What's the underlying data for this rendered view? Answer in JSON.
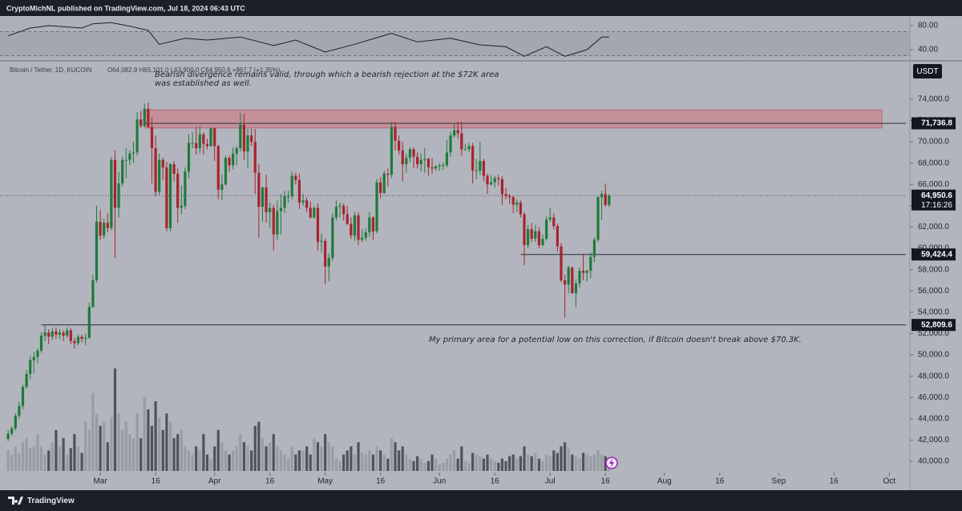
{
  "header": "CryptoMichNL published on TradingView.com, Jul 18, 2024 06:43 UTC",
  "footer": "TradingView",
  "chart_data": {
    "type": "candlestick",
    "legend": {
      "symbol": "Bitcoin / Tether, 1D, KUCOIN",
      "ohlc": "O64,082.9 H65,101.0 L63,900.0 C64,950.6 +867.7 (+1.35%)"
    },
    "currency": "USDT",
    "annotations": [
      {
        "lines": [
          "Bearish divergence remains valid, through which a bearish rejection at the $72K area",
          "was established as well."
        ]
      },
      {
        "lines": [
          "My primary area for a potential low on this correction, if Bitcoin doesn't break above $70.3K."
        ]
      }
    ],
    "colors": {
      "up": "#1f7a3a",
      "down": "#a8232e",
      "volume_up": "#9a9ca4",
      "volume_down": "#50535b"
    },
    "xlim": [
      -2.2,
      243.5
    ],
    "xticks": [
      {
        "value": 25,
        "label": "Mar"
      },
      {
        "value": 40,
        "label": "16"
      },
      {
        "value": 56,
        "label": "Apr"
      },
      {
        "value": 71,
        "label": "16"
      },
      {
        "value": 86,
        "label": "May"
      },
      {
        "value": 101,
        "label": "16"
      },
      {
        "value": 117,
        "label": "Jun"
      },
      {
        "value": 132,
        "label": "16"
      },
      {
        "value": 147,
        "label": "Jul"
      },
      {
        "value": 162,
        "label": "16"
      },
      {
        "value": 178,
        "label": "Aug"
      },
      {
        "value": 193,
        "label": "16"
      },
      {
        "value": 209,
        "label": "Sep"
      },
      {
        "value": 224,
        "label": "16"
      },
      {
        "value": 239,
        "label": "Oct"
      }
    ],
    "ylim": [
      38950,
      77300
    ],
    "yticks": [
      {
        "value": 40000,
        "label": "40,000.0"
      },
      {
        "value": 42000,
        "label": "42,000.0"
      },
      {
        "value": 44000,
        "label": "44,000.0"
      },
      {
        "value": 46000,
        "label": "46,000.0"
      },
      {
        "value": 48000,
        "label": "48,000.0"
      },
      {
        "value": 50000,
        "label": "50,000.0"
      },
      {
        "value": 52000,
        "label": "52,000.0"
      },
      {
        "value": 54000,
        "label": "54,000.0"
      },
      {
        "value": 56000,
        "label": "56,000.0"
      },
      {
        "value": 58000,
        "label": "58,000.0"
      },
      {
        "value": 60000,
        "label": "60,000.0"
      },
      {
        "value": 62000,
        "label": "62,000.0"
      },
      {
        "value": 64000,
        "label": "64,000.0"
      },
      {
        "value": 66000,
        "label": "66,000.0"
      },
      {
        "value": 68000,
        "label": "68,000.0"
      },
      {
        "value": 70000,
        "label": "70,000.0"
      },
      {
        "value": 72000,
        "label": "72,000.0"
      },
      {
        "value": 74000,
        "label": "74,000.0"
      }
    ],
    "zone": {
      "from": 37,
      "to": 237,
      "low": 71300,
      "high": 73000,
      "color": "#c98690"
    },
    "price_lines": [
      {
        "value": 71736.8,
        "label": "71,736.8",
        "from": 37
      },
      {
        "value": 64950.6,
        "label": "64,950.6",
        "countdown": "17:16:26",
        "style": "dotted"
      },
      {
        "value": 59424.4,
        "label": "59,424.4",
        "from": 139
      },
      {
        "value": 52809.6,
        "label": "52,809.6",
        "from": 9
      }
    ],
    "candles": [
      [
        42100,
        42900,
        41900,
        42600
      ],
      [
        42600,
        43300,
        42400,
        43100
      ],
      [
        43100,
        44500,
        42900,
        44300
      ],
      [
        44300,
        45600,
        44000,
        45200
      ],
      [
        45200,
        47200,
        44900,
        47000
      ],
      [
        47000,
        48600,
        46800,
        48200
      ],
      [
        48200,
        49900,
        47700,
        49500
      ],
      [
        49500,
        50300,
        48300,
        49800
      ],
      [
        49800,
        50600,
        49200,
        50400
      ],
      [
        50400,
        52100,
        50200,
        51800
      ],
      [
        51800,
        52800,
        51300,
        52100
      ],
      [
        52100,
        52400,
        51000,
        51700
      ],
      [
        51700,
        52500,
        51400,
        52200
      ],
      [
        52200,
        52600,
        51500,
        51900
      ],
      [
        51900,
        52400,
        51500,
        52100
      ],
      [
        52100,
        52300,
        51300,
        51800
      ],
      [
        51800,
        52600,
        51600,
        52300
      ],
      [
        52300,
        52500,
        51000,
        51300
      ],
      [
        51300,
        51600,
        50600,
        51100
      ],
      [
        51100,
        51900,
        50900,
        51700
      ],
      [
        51700,
        51900,
        51200,
        51500
      ],
      [
        51500,
        52000,
        50900,
        51600
      ],
      [
        51600,
        54900,
        51500,
        54500
      ],
      [
        54500,
        57500,
        54400,
        57000
      ],
      [
        57000,
        64000,
        56800,
        62500
      ],
      [
        62500,
        63600,
        60800,
        61200
      ],
      [
        61200,
        62800,
        60900,
        62400
      ],
      [
        62400,
        63300,
        61500,
        61900
      ],
      [
        61900,
        68600,
        61700,
        68300
      ],
      [
        68300,
        69200,
        59100,
        63800
      ],
      [
        63800,
        67200,
        62900,
        66100
      ],
      [
        66100,
        68600,
        65800,
        68300
      ],
      [
        68300,
        69400,
        66600,
        68300
      ],
      [
        68300,
        69200,
        67800,
        68900
      ],
      [
        68900,
        70000,
        68000,
        69000
      ],
      [
        69000,
        72800,
        68700,
        72100
      ],
      [
        72100,
        72900,
        71300,
        71500
      ],
      [
        71500,
        73600,
        71400,
        73100
      ],
      [
        73100,
        73700,
        71300,
        71400
      ],
      [
        71400,
        72300,
        66100,
        69400
      ],
      [
        69400,
        70600,
        64900,
        65300
      ],
      [
        65300,
        68900,
        65000,
        68300
      ],
      [
        68300,
        68500,
        66400,
        67600
      ],
      [
        67600,
        68100,
        61600,
        61900
      ],
      [
        61900,
        68000,
        61600,
        67900
      ],
      [
        67900,
        68200,
        66300,
        67000
      ],
      [
        67000,
        67500,
        62400,
        63800
      ],
      [
        63800,
        65900,
        63200,
        64000
      ],
      [
        64000,
        67600,
        63700,
        67200
      ],
      [
        67200,
        70700,
        66600,
        69900
      ],
      [
        69900,
        70900,
        69400,
        69900
      ],
      [
        69900,
        71400,
        68800,
        69400
      ],
      [
        69400,
        71500,
        68900,
        70700
      ],
      [
        70700,
        70900,
        68800,
        69800
      ],
      [
        69800,
        70300,
        69300,
        69600
      ],
      [
        69600,
        71300,
        69500,
        71300
      ],
      [
        71300,
        71300,
        68200,
        69600
      ],
      [
        69600,
        69700,
        64600,
        65500
      ],
      [
        65500,
        66900,
        64500,
        66000
      ],
      [
        66000,
        68700,
        65900,
        68500
      ],
      [
        68500,
        68700,
        67200,
        67800
      ],
      [
        67800,
        69500,
        67400,
        68900
      ],
      [
        68900,
        69600,
        67800,
        69400
      ],
      [
        69400,
        72700,
        69100,
        71600
      ],
      [
        71600,
        72600,
        68300,
        69100
      ],
      [
        69100,
        71200,
        67500,
        70600
      ],
      [
        70600,
        71200,
        69600,
        70000
      ],
      [
        70000,
        71200,
        65100,
        67100
      ],
      [
        67100,
        67900,
        61000,
        63900
      ],
      [
        63900,
        65800,
        62500,
        65700
      ],
      [
        65700,
        66900,
        62400,
        63400
      ],
      [
        63400,
        64300,
        61900,
        63800
      ],
      [
        63800,
        64100,
        59800,
        61300
      ],
      [
        61300,
        64500,
        60800,
        63500
      ],
      [
        63500,
        65100,
        61300,
        63800
      ],
      [
        63800,
        65400,
        63300,
        64900
      ],
      [
        64900,
        65400,
        64300,
        64900
      ],
      [
        64900,
        67200,
        64600,
        66800
      ],
      [
        66800,
        67100,
        66000,
        66400
      ],
      [
        66400,
        67000,
        63700,
        64300
      ],
      [
        64300,
        65100,
        64000,
        64500
      ],
      [
        64500,
        64800,
        63400,
        63800
      ],
      [
        63800,
        64400,
        62800,
        62900
      ],
      [
        62900,
        64000,
        62800,
        63800
      ],
      [
        63800,
        64200,
        59800,
        60600
      ],
      [
        60600,
        61400,
        59600,
        60700
      ],
      [
        60700,
        60900,
        56600,
        58300
      ],
      [
        58300,
        59500,
        56900,
        59100
      ],
      [
        59100,
        63300,
        58800,
        62900
      ],
      [
        62900,
        64500,
        62600,
        63900
      ],
      [
        63900,
        64300,
        62900,
        64000
      ],
      [
        64000,
        64200,
        62600,
        63200
      ],
      [
        63200,
        64000,
        62200,
        62300
      ],
      [
        62300,
        62900,
        60900,
        61200
      ],
      [
        61200,
        63400,
        60700,
        63100
      ],
      [
        63100,
        63400,
        60300,
        60800
      ],
      [
        60800,
        61800,
        60600,
        61000
      ],
      [
        61000,
        61900,
        60700,
        61500
      ],
      [
        61500,
        63400,
        61100,
        62900
      ],
      [
        62900,
        63000,
        60800,
        61600
      ],
      [
        61600,
        66500,
        61400,
        66200
      ],
      [
        66200,
        66700,
        64700,
        65200
      ],
      [
        65200,
        67300,
        65100,
        67000
      ],
      [
        67000,
        67500,
        65800,
        66900
      ],
      [
        66900,
        71900,
        66600,
        71400
      ],
      [
        71400,
        71900,
        69200,
        70100
      ],
      [
        70100,
        70600,
        68800,
        69200
      ],
      [
        69200,
        70000,
        66300,
        67900
      ],
      [
        67900,
        68900,
        67100,
        68500
      ],
      [
        68500,
        69500,
        68100,
        69300
      ],
      [
        69300,
        69500,
        67500,
        68600
      ],
      [
        68600,
        69000,
        67500,
        67900
      ],
      [
        67900,
        68900,
        67200,
        68300
      ],
      [
        68300,
        69400,
        67100,
        68400
      ],
      [
        68400,
        68500,
        66800,
        67600
      ],
      [
        67600,
        68500,
        67000,
        67500
      ],
      [
        67500,
        67800,
        67300,
        67700
      ],
      [
        67700,
        68000,
        67300,
        67800
      ],
      [
        67800,
        68100,
        67400,
        67800
      ],
      [
        67800,
        70200,
        67600,
        69000
      ],
      [
        69000,
        71000,
        68600,
        70600
      ],
      [
        70600,
        71800,
        70400,
        71100
      ],
      [
        71100,
        71900,
        70300,
        70800
      ],
      [
        70800,
        71900,
        68700,
        69300
      ],
      [
        69300,
        69800,
        69200,
        69300
      ],
      [
        69300,
        69900,
        69000,
        69600
      ],
      [
        69600,
        69900,
        66100,
        67300
      ],
      [
        67300,
        68400,
        66500,
        67300
      ],
      [
        67300,
        70000,
        66900,
        68200
      ],
      [
        68200,
        68400,
        66300,
        66800
      ],
      [
        66800,
        67000,
        65100,
        66000
      ],
      [
        66000,
        66900,
        65900,
        66200
      ],
      [
        66200,
        66800,
        65700,
        66600
      ],
      [
        66600,
        66900,
        65900,
        66500
      ],
      [
        66500,
        66800,
        64100,
        65100
      ],
      [
        65100,
        65700,
        64600,
        64900
      ],
      [
        64900,
        65100,
        64200,
        64800
      ],
      [
        64800,
        64900,
        63300,
        64100
      ],
      [
        64100,
        64600,
        63400,
        64300
      ],
      [
        64300,
        64500,
        62900,
        63200
      ],
      [
        63200,
        63400,
        58400,
        60300
      ],
      [
        60300,
        62200,
        60000,
        61800
      ],
      [
        61800,
        62400,
        60600,
        60900
      ],
      [
        60900,
        62200,
        60600,
        61600
      ],
      [
        61600,
        62000,
        60000,
        60300
      ],
      [
        60300,
        61300,
        60200,
        60900
      ],
      [
        60900,
        63000,
        60700,
        62700
      ],
      [
        62700,
        63800,
        62500,
        62900
      ],
      [
        62900,
        63300,
        61800,
        62100
      ],
      [
        62100,
        62300,
        59700,
        60200
      ],
      [
        60200,
        60500,
        56800,
        57000
      ],
      [
        57000,
        57500,
        53500,
        56600
      ],
      [
        56600,
        58400,
        55800,
        58200
      ],
      [
        58200,
        58300,
        55700,
        55800
      ],
      [
        55800,
        57100,
        54500,
        56700
      ],
      [
        56700,
        58200,
        56300,
        57900
      ],
      [
        57900,
        59500,
        57000,
        57700
      ],
      [
        57700,
        58000,
        56900,
        57900
      ],
      [
        57900,
        59600,
        57200,
        59200
      ],
      [
        59200,
        61000,
        58700,
        60800
      ],
      [
        60800,
        64900,
        60600,
        64800
      ],
      [
        64800,
        65400,
        62700,
        65100
      ],
      [
        65100,
        66100,
        63900,
        64082.9
      ],
      [
        64082.9,
        65101.0,
        63900.0,
        64950.6
      ]
    ],
    "volume": [
      25,
      20,
      30,
      22,
      35,
      40,
      28,
      30,
      45,
      30,
      20,
      25,
      35,
      50,
      30,
      40,
      20,
      28,
      45,
      30,
      22,
      60,
      50,
      95,
      70,
      55,
      60,
      35,
      65,
      125,
      70,
      50,
      60,
      45,
      40,
      70,
      40,
      90,
      75,
      55,
      85,
      65,
      50,
      70,
      60,
      40,
      45,
      50,
      30,
      25,
      20,
      30,
      25,
      45,
      20,
      15,
      30,
      50,
      35,
      25,
      20,
      25,
      30,
      45,
      35,
      30,
      25,
      55,
      60,
      40,
      30,
      35,
      45,
      30,
      25,
      20,
      15,
      30,
      20,
      25,
      25,
      30,
      20,
      40,
      35,
      30,
      45,
      35,
      30,
      15,
      12,
      20,
      25,
      30,
      20,
      35,
      22,
      20,
      25,
      20,
      30,
      25,
      20,
      15,
      40,
      35,
      25,
      30,
      20,
      15,
      12,
      18,
      15,
      10,
      12,
      20,
      15,
      8,
      10,
      15,
      20,
      25,
      15,
      30,
      12,
      10,
      22,
      20,
      18,
      15,
      20,
      15,
      12,
      10,
      15,
      12,
      18,
      20,
      15,
      18,
      30,
      20,
      18,
      22,
      15,
      12,
      20,
      18,
      25,
      22,
      30,
      35,
      28,
      20,
      18,
      15,
      22,
      20,
      18,
      20,
      25,
      20,
      18,
      15
    ],
    "rsi": {
      "color": "#1c1f26",
      "x": [
        0,
        6,
        11,
        20,
        23,
        28,
        33,
        38,
        41,
        48,
        54,
        63,
        72,
        78,
        86,
        94,
        100,
        104,
        111,
        120,
        128,
        135,
        140,
        146,
        151,
        157,
        161,
        163
      ],
      "values": [
        63,
        76,
        80,
        76,
        83,
        85,
        79,
        72,
        49,
        59,
        56,
        61,
        47,
        56,
        36,
        49,
        60,
        67,
        53,
        59,
        48,
        45,
        29,
        45,
        29,
        40,
        61,
        61
      ],
      "ylim": [
        26.7,
        93.3
      ],
      "yticks": [
        {
          "value": 80,
          "label": "80.00"
        },
        {
          "value": 40,
          "label": "40.00"
        }
      ],
      "bands": [
        30,
        70
      ]
    }
  }
}
